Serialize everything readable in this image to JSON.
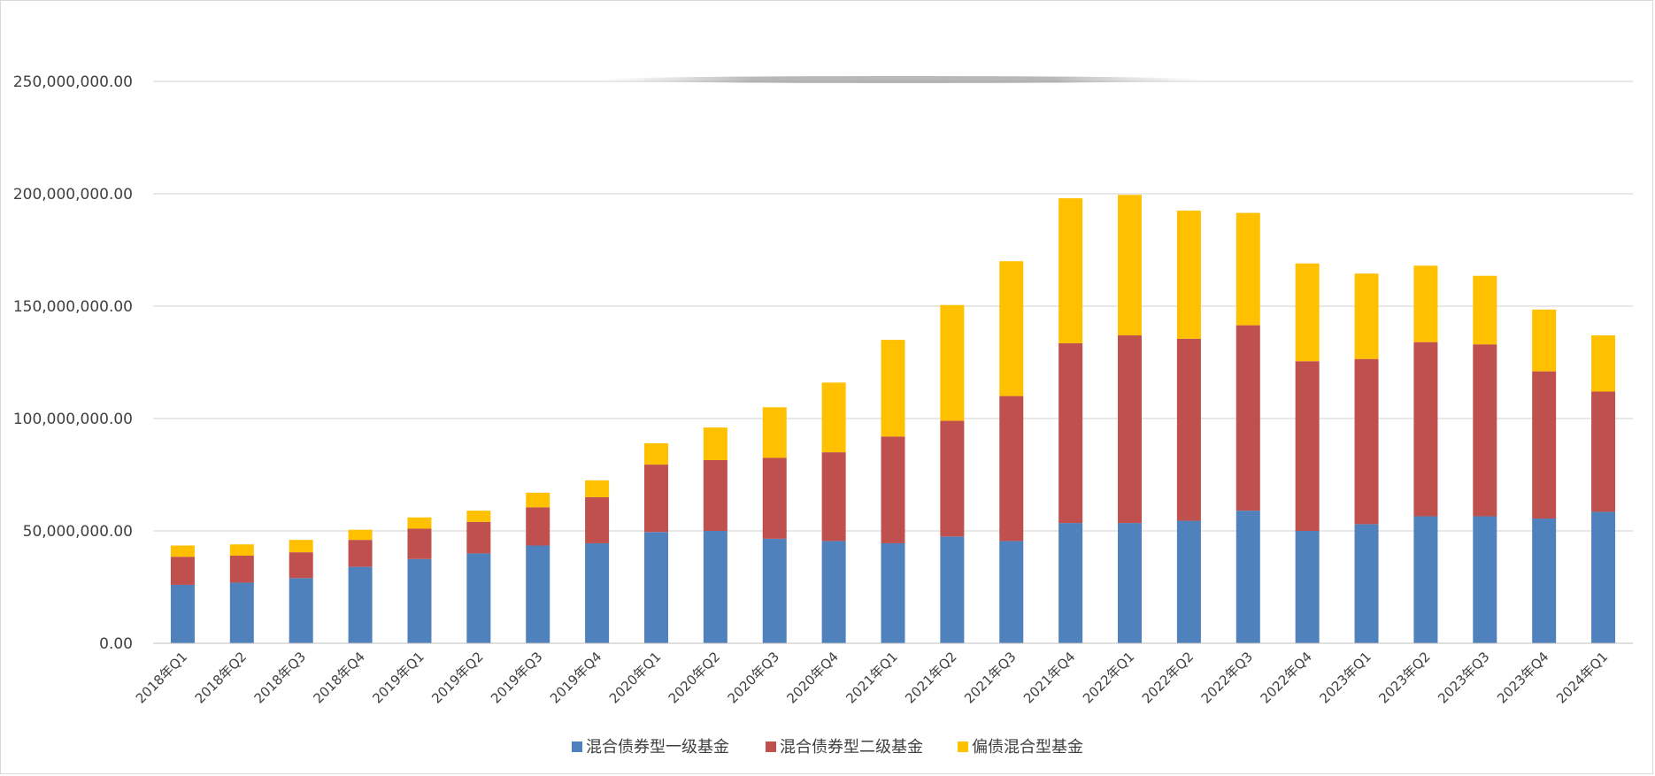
{
  "chart_data": {
    "type": "bar",
    "stacked": true,
    "title": "",
    "xlabel": "",
    "ylabel": "",
    "ylim": [
      0,
      250000000
    ],
    "yticks": [
      "0.00",
      "50,000,000.00",
      "100,000,000.00",
      "150,000,000.00",
      "200,000,000.00",
      "250,000,000.00"
    ],
    "ytick_values": [
      0,
      50000000,
      100000000,
      150000000,
      200000000,
      250000000
    ],
    "grid": true,
    "legend_position": "bottom",
    "categories": [
      "2018年Q1",
      "2018年Q2",
      "2018年Q3",
      "2018年Q4",
      "2019年Q1",
      "2019年Q2",
      "2019年Q3",
      "2019年Q4",
      "2020年Q1",
      "2020年Q2",
      "2020年Q3",
      "2020年Q4",
      "2021年Q1",
      "2021年Q2",
      "2021年Q3",
      "2021年Q4",
      "2022年Q1",
      "2022年Q2",
      "2022年Q3",
      "2022年Q4",
      "2023年Q1",
      "2023年Q2",
      "2023年Q3",
      "2023年Q4",
      "2024年Q1"
    ],
    "series": [
      {
        "name": "混合债券型一级基金",
        "color": "#4f81bd",
        "values": [
          26000000,
          27000000,
          29000000,
          34000000,
          37500000,
          40000000,
          43500000,
          44500000,
          49500000,
          50000000,
          46500000,
          45500000,
          44500000,
          47500000,
          45500000,
          53500000,
          53500000,
          54500000,
          59000000,
          50000000,
          53000000,
          56500000,
          56500000,
          55500000,
          58500000
        ]
      },
      {
        "name": "混合债券型二级基金",
        "color": "#c0504d",
        "values": [
          12500000,
          12000000,
          11500000,
          12000000,
          13500000,
          14000000,
          17000000,
          20500000,
          30000000,
          31500000,
          36000000,
          39500000,
          47500000,
          51500000,
          64500000,
          80000000,
          83500000,
          81000000,
          82500000,
          75500000,
          73500000,
          77500000,
          76500000,
          65500000,
          53500000
        ]
      },
      {
        "name": "偏债混合型基金",
        "color": "#ffc000",
        "values": [
          5000000,
          5000000,
          5500000,
          4500000,
          5000000,
          5000000,
          6500000,
          7500000,
          9500000,
          14500000,
          22500000,
          31000000,
          43000000,
          51500000,
          60000000,
          64500000,
          62500000,
          57000000,
          50000000,
          43500000,
          38000000,
          34000000,
          30500000,
          27500000,
          25000000
        ]
      }
    ]
  }
}
